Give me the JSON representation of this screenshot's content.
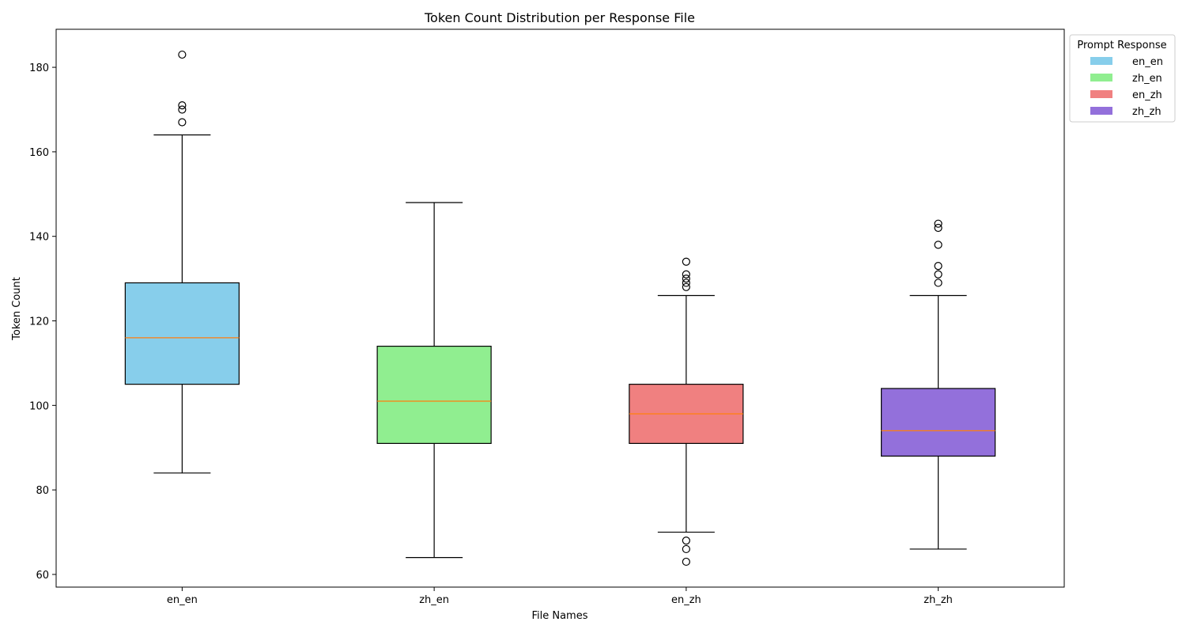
{
  "chart_data": {
    "type": "box",
    "title": "Token Count Distribution per Response File",
    "xlabel": "File Names",
    "ylabel": "Token Count",
    "ylim": [
      57,
      189
    ],
    "yticks": [
      60,
      80,
      100,
      120,
      140,
      160,
      180
    ],
    "categories": [
      "en_en",
      "zh_en",
      "en_zh",
      "zh_zh"
    ],
    "boxes": [
      {
        "name": "en_en",
        "whislo": 84,
        "q1": 105,
        "med": 116,
        "q3": 129,
        "whishi": 164,
        "fliers": [
          167,
          170,
          171,
          183
        ],
        "color": "#87ceeb"
      },
      {
        "name": "zh_en",
        "whislo": 64,
        "q1": 91,
        "med": 101,
        "q3": 114,
        "whishi": 148,
        "fliers": [],
        "color": "#90ee90"
      },
      {
        "name": "en_zh",
        "whislo": 70,
        "q1": 91,
        "med": 98,
        "q3": 105,
        "whishi": 126,
        "fliers": [
          63,
          66,
          68,
          128,
          129,
          130,
          131,
          134
        ],
        "color": "#f08080"
      },
      {
        "name": "zh_zh",
        "whislo": 66,
        "q1": 88,
        "med": 94,
        "q3": 104,
        "whishi": 126,
        "fliers": [
          129,
          131,
          133,
          138,
          142,
          143
        ],
        "color": "#9370db"
      }
    ],
    "median_color": "#ff7f0e",
    "grid": false,
    "legend": {
      "title": "Prompt Response",
      "placement": "outside-top-right",
      "entries": [
        "en_en",
        "zh_en",
        "en_zh",
        "zh_zh"
      ]
    }
  }
}
